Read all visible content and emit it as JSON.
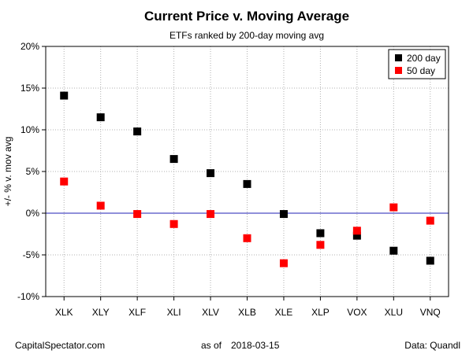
{
  "chart_data": {
    "type": "scatter",
    "title": "Current Price v. Moving Average",
    "subtitle": "ETFs ranked by 200-day moving avg",
    "xlabel": "",
    "ylabel": "+/- % v. mov avg",
    "categories": [
      "XLK",
      "XLY",
      "XLF",
      "XLI",
      "XLV",
      "XLB",
      "XLE",
      "XLP",
      "VOX",
      "XLU",
      "VNQ"
    ],
    "series": [
      {
        "name": "200 day",
        "color": "#000000",
        "values": [
          14.1,
          11.5,
          9.8,
          6.5,
          4.8,
          3.5,
          -0.1,
          -2.4,
          -2.7,
          -4.5,
          -5.7
        ]
      },
      {
        "name": "50 day",
        "color": "#ff0000",
        "values": [
          3.8,
          0.9,
          -0.1,
          -1.3,
          -0.1,
          -3.0,
          -6.0,
          -3.8,
          -2.1,
          0.7,
          -0.9
        ]
      }
    ],
    "ylim": [
      -10,
      20
    ],
    "yticks": [
      -10,
      -5,
      0,
      5,
      10,
      15,
      20
    ],
    "ytick_labels": [
      "-10%",
      "-5%",
      "0%",
      "5%",
      "10%",
      "15%",
      "20%"
    ],
    "grid": true,
    "zero_line_color": "#1f1fb4",
    "legend_position": "top-right"
  },
  "footer": {
    "source": "CapitalSpectator.com",
    "date_prefix": "as of",
    "date": "2018-03-15",
    "data_credit": "Data: Quandl"
  }
}
